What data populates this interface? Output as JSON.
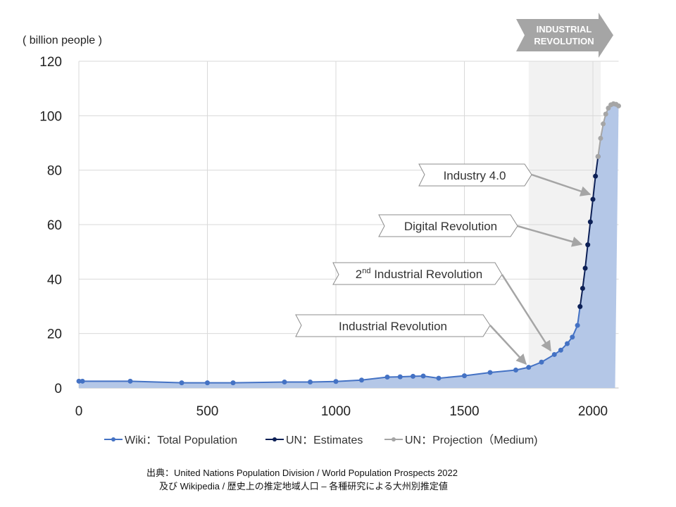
{
  "chart_data": {
    "type": "line",
    "title": "",
    "ylabel": "( billion people )",
    "xlabel": "",
    "xlim": [
      0,
      2100
    ],
    "ylim": [
      0,
      120
    ],
    "x_ticks": [
      "0",
      "500",
      "1000",
      "1500",
      "2000"
    ],
    "y_ticks": [
      "0",
      "20",
      "40",
      "60",
      "80",
      "100",
      "120"
    ],
    "grid": true,
    "legend_position": "bottom",
    "series": [
      {
        "name": "Wiki：Total Population",
        "color": "#4472c4",
        "x": [
          0,
          14,
          200,
          400,
          500,
          600,
          800,
          900,
          1000,
          1100,
          1200,
          1250,
          1300,
          1340,
          1400,
          1500,
          1600,
          1700,
          1750,
          1800,
          1850,
          1875,
          1900,
          1920,
          1940,
          1950
        ],
        "y": [
          2.5,
          2.5,
          2.5,
          1.9,
          1.9,
          1.9,
          2.2,
          2.2,
          2.4,
          2.9,
          4.0,
          4.1,
          4.3,
          4.4,
          3.6,
          4.5,
          5.7,
          6.6,
          7.6,
          9.5,
          12.3,
          13.9,
          16.3,
          18.7,
          23.0,
          29.9
        ]
      },
      {
        "name": "UN：Estimates",
        "color": "#0d2056",
        "x": [
          1950,
          1960,
          1970,
          1980,
          1990,
          2000,
          2010,
          2020
        ],
        "y": [
          29.9,
          36.6,
          44.0,
          52.6,
          61.0,
          69.3,
          77.8,
          85.0
        ]
      },
      {
        "name": "UN：Projection（Medium)",
        "color": "#a5a5a5",
        "x": [
          2020,
          2030,
          2040,
          2050,
          2060,
          2070,
          2080,
          2090,
          2100
        ],
        "y": [
          85.0,
          91.7,
          97.0,
          100.6,
          102.8,
          104.0,
          104.4,
          104.2,
          103.6
        ]
      }
    ],
    "shaded_range": [
      1750,
      2030
    ],
    "banner": "INDUSTRIAL REVOLUTION",
    "annotations": [
      {
        "text": "Industry 4.0",
        "points_to_year": 2000
      },
      {
        "text": "Digital Revolution",
        "points_to_year": 1970
      },
      {
        "text": "2nd Industrial Revolution",
        "sup": "nd",
        "prefix": "2",
        "rest": " Industrial Revolution",
        "points_to_year": 1850
      },
      {
        "text": "Industrial Revolution",
        "points_to_year": 1750
      }
    ]
  },
  "legend": [
    "Wiki：Total Population",
    "UN：Estimates",
    "UN：Projection（Medium)"
  ],
  "source": {
    "line1": "出典：United Nations Population Division / World Population Prospects 2022",
    "line2": "及び Wikipedia / 歴史上の推定地域人口 – 各種研究による大州別推定値"
  }
}
